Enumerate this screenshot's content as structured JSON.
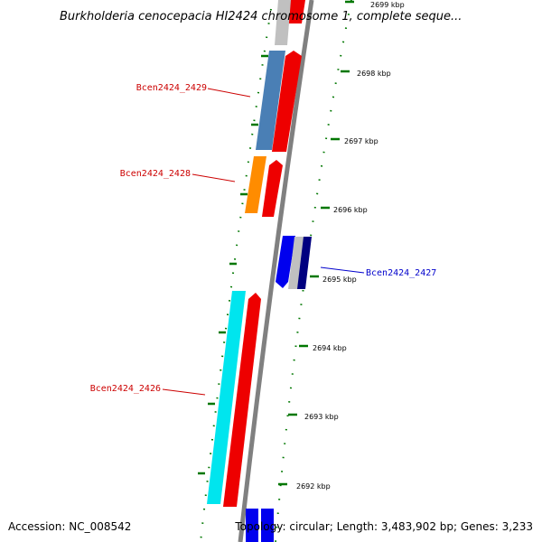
{
  "map": {
    "title": "Burkholderia cenocepacia HI2424 chromosome 1, complete seque...",
    "accession": "Accession: NC_008542",
    "summary": "Topology: circular; Length: 3,483,902 bp; Genes: 3,233",
    "ticks": [
      {
        "label": "2699 kbp"
      },
      {
        "label": "2698 kbp"
      },
      {
        "label": "2697 kbp"
      },
      {
        "label": "2696 kbp"
      },
      {
        "label": "2695 kbp"
      },
      {
        "label": "2694 kbp"
      },
      {
        "label": "2693 kbp"
      },
      {
        "label": "2692 kbp"
      }
    ],
    "genes": [
      {
        "label": "Bcen2424_2429",
        "color": "#cc0000"
      },
      {
        "label": "Bcen2424_2428",
        "color": "#cc0000"
      },
      {
        "label": "Bcen2424_2427",
        "color": "#0000cc"
      },
      {
        "label": "Bcen2424_2426",
        "color": "#cc0000"
      }
    ],
    "feature_colors": {
      "backbone": "#808080",
      "cds_forward": "#ee0000",
      "gene_steelblue": "#4a7fb5",
      "gene_orange": "#ff8c00",
      "gene_blue": "#0000ee",
      "gene_cyan": "#00e5ee",
      "gene_navy": "#000080",
      "gene_gray": "#c0c0c0",
      "tick_green": "#007700"
    }
  }
}
